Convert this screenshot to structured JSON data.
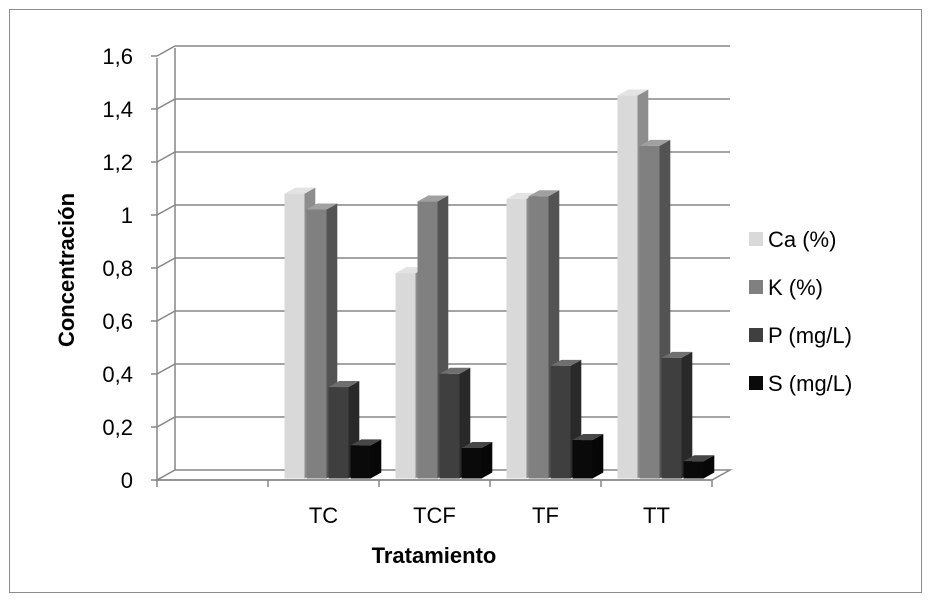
{
  "chart_data": {
    "type": "bar",
    "style": "3d-clustered-column",
    "categories": [
      "",
      "TC",
      "TCF",
      "TF",
      "TT"
    ],
    "series": [
      {
        "name": "Ca (%)",
        "values": [
          null,
          1.06,
          0.76,
          1.04,
          1.43
        ],
        "color": "#d9d9d9"
      },
      {
        "name": "K (%)",
        "values": [
          null,
          1.0,
          1.03,
          1.05,
          1.24
        ],
        "color": "#808080"
      },
      {
        "name": "P (mg/L)",
        "values": [
          null,
          0.33,
          0.38,
          0.41,
          0.44
        ],
        "color": "#3f3f3f"
      },
      {
        "name": "S (mg/L)",
        "values": [
          null,
          0.11,
          0.1,
          0.13,
          0.05
        ],
        "color": "#0a0a0a"
      }
    ],
    "xlabel": "Tratamiento",
    "ylabel": "Concentración",
    "ylim": [
      0,
      1.6
    ],
    "yticks": [
      "0",
      "0,2",
      "0,4",
      "0,6",
      "0,8",
      "1",
      "1,2",
      "1,4",
      "1,6"
    ],
    "grid": true,
    "legend": "right"
  }
}
